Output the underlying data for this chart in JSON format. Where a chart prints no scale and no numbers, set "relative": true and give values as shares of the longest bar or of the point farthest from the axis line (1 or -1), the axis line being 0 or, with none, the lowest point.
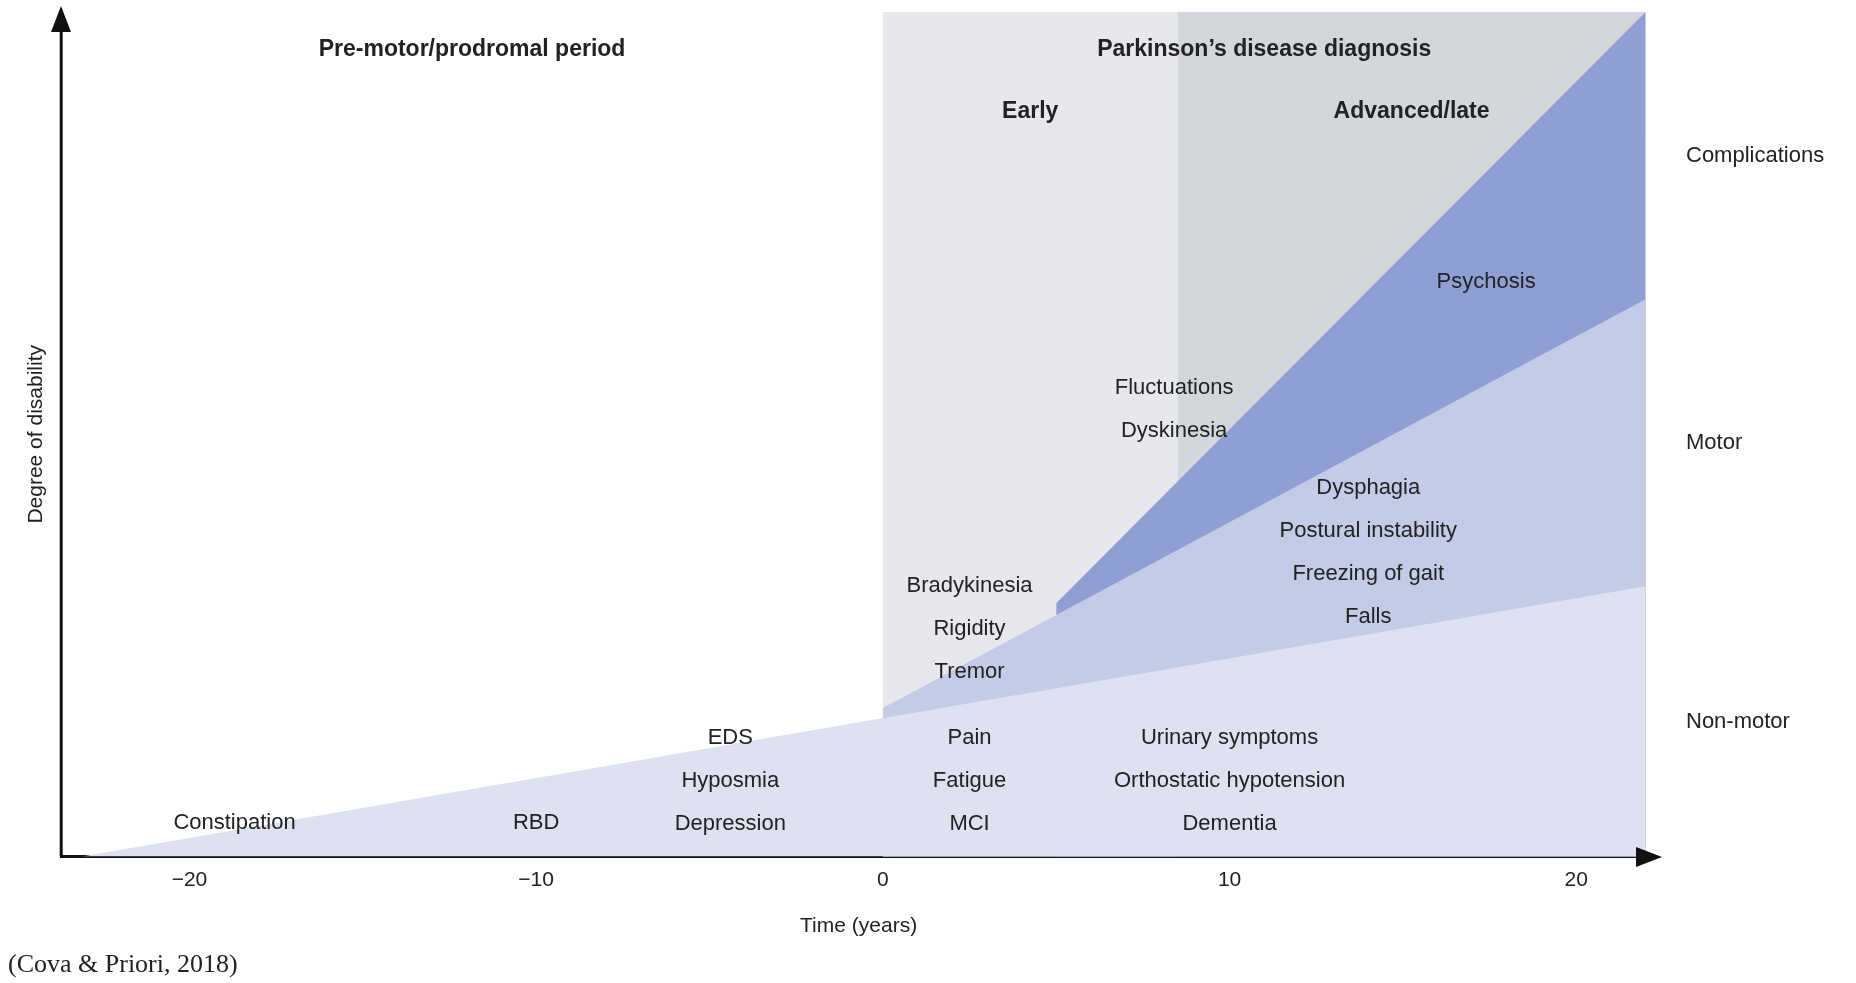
{
  "chart_data": {
    "type": "area",
    "relative": true,
    "xlabel": "Time (years)",
    "ylabel": "Degree of disability",
    "xlim": [
      -23.7,
      22.3
    ],
    "xticks": [
      -20,
      -10,
      0,
      10,
      20
    ],
    "grid": false,
    "legend": false,
    "series": [
      {
        "name": "Non-motor",
        "color": "#dde1f0",
        "x": [
          -23.1,
          22
        ],
        "values": [
          0,
          0.32
        ]
      },
      {
        "name": "Motor",
        "color": "#c3cbe6",
        "x": [
          0,
          22
        ],
        "values": [
          0.176,
          0.66
        ]
      },
      {
        "name": "Complications",
        "color": "#8f9fd3",
        "x": [
          5,
          22
        ],
        "values": [
          0.3,
          1
        ]
      }
    ],
    "bands": [
      {
        "axis": "x",
        "from": 0,
        "to": 8.5,
        "label": "Early",
        "color": "#e6e8eb"
      },
      {
        "axis": "x",
        "from": 8.5,
        "to": 22,
        "label": "Advanced/late",
        "color": "#d3d7db"
      }
    ],
    "annotations": [
      "Pre-motor/prodromal period",
      "Parkinson’s disease diagnosis",
      "(Cova & Priori, 2018)",
      "Constipation",
      "RBD",
      "EDS\nHyposmia\nDepression",
      "Pain\nFatigue\nMCI",
      "Urinary symptoms\nOrthostatic hypotension\nDementia",
      "Bradykinesia\nRigidity\nTremor",
      "Dysphagia\nPostural instability\nFreezing of gait\nFalls",
      "Fluctuations\nDyskinesia",
      "Psychosis"
    ]
  }
}
